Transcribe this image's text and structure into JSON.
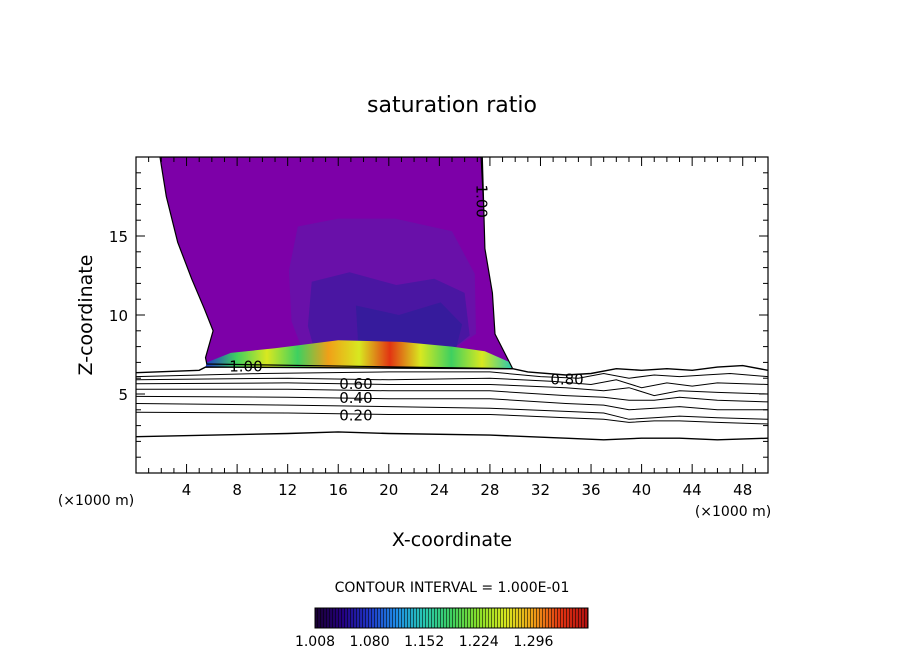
{
  "chart_data": {
    "type": "contour",
    "title": "saturation ratio",
    "xlabel": "X-coordinate",
    "ylabel": "Z-coordinate",
    "x_unit_left": "(×1000 m)",
    "x_unit_right": "(×1000 m)",
    "xlim": [
      0,
      50
    ],
    "ylim": [
      0,
      20
    ],
    "xticks": [
      4,
      8,
      12,
      16,
      20,
      24,
      28,
      32,
      36,
      40,
      44,
      48
    ],
    "yticks": [
      5,
      10,
      15
    ],
    "contour_interval_text": "CONTOUR INTERVAL = 1.000E-01",
    "contour_labels": [
      {
        "text": "1.00",
        "x": 27.3,
        "y": 17.2,
        "rotate": 90
      },
      {
        "text": "1.00",
        "x": 8.7,
        "y": 6.7
      },
      {
        "text": "0.80",
        "x": 34.1,
        "y": 5.9
      },
      {
        "text": "0.60",
        "x": 17.4,
        "y": 5.6
      },
      {
        "text": "0.40",
        "x": 17.4,
        "y": 4.7
      },
      {
        "text": "0.20",
        "x": 17.4,
        "y": 3.6
      }
    ],
    "colorbar": {
      "min": 1.008,
      "max": 1.368,
      "tick_labels": [
        "1.008",
        "1.080",
        "1.152",
        "1.224",
        "1.296"
      ],
      "colors": [
        "#1a0033",
        "#240080",
        "#1f37c8",
        "#1f8ee8",
        "#28c8b0",
        "#3ed060",
        "#8ae02a",
        "#d8e820",
        "#f0a018",
        "#e23412",
        "#b01010"
      ]
    },
    "colors": {
      "cloud_main": "#7d00a8",
      "cloud_inner": "#5a1eaa",
      "cloud_core": "#3d1aa0"
    }
  }
}
